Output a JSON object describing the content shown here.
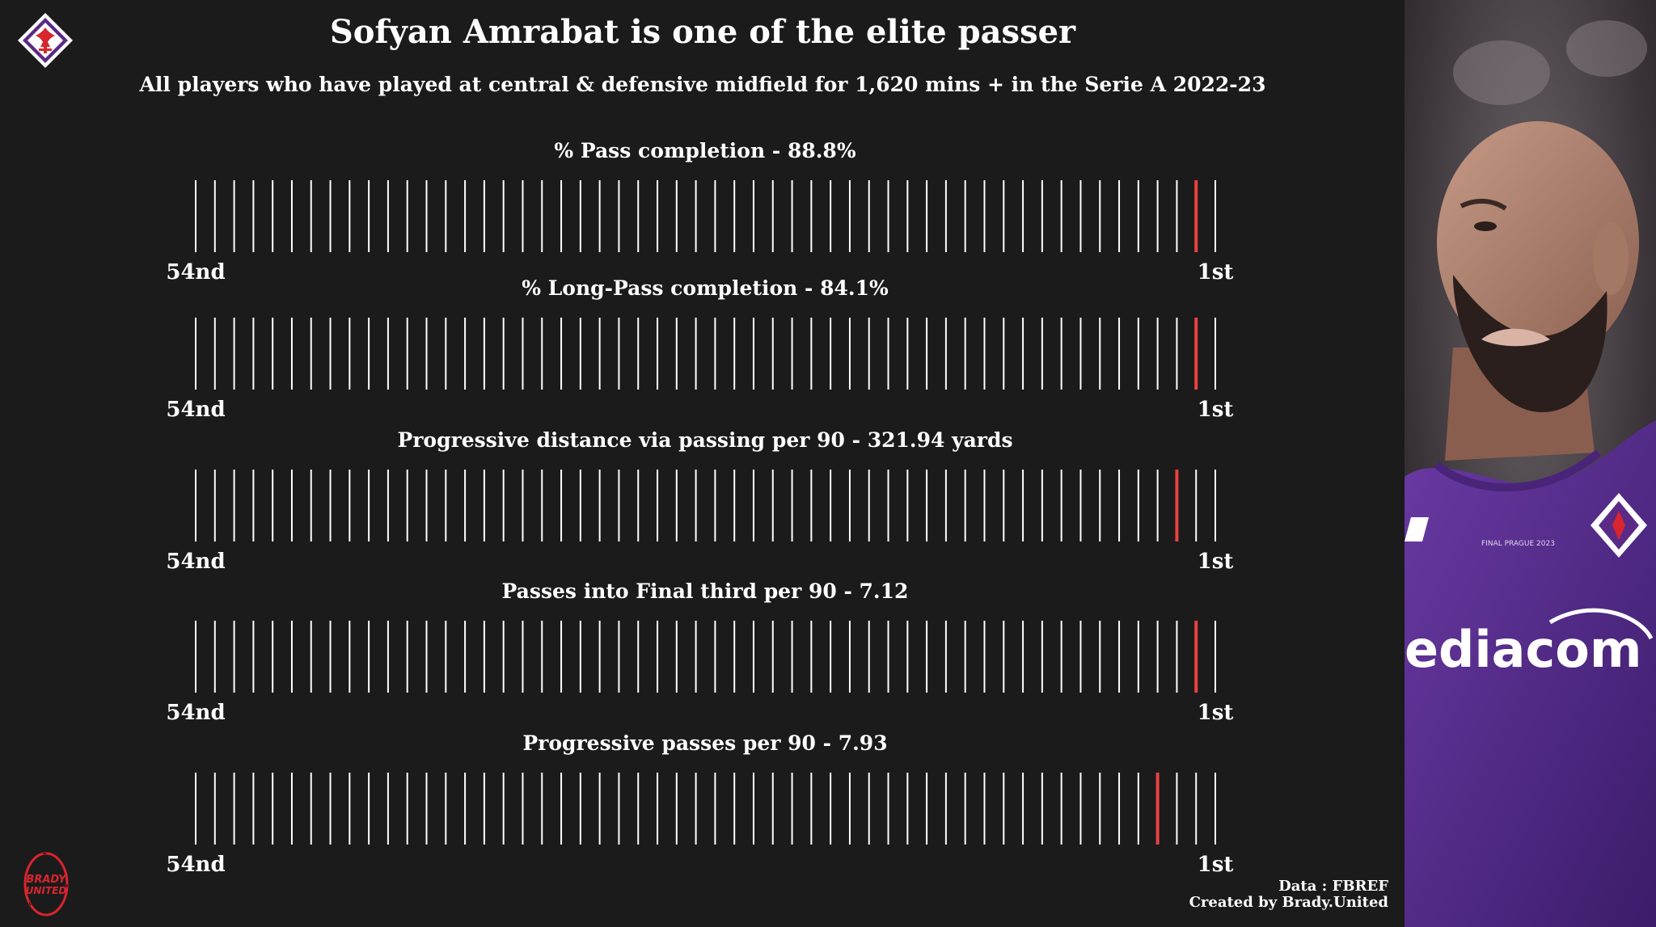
{
  "title": "Sofyan Amrabat is one of the elite passer",
  "subtitle": "All players who have played at central & defensive midfield for 1,620 mins + in the Serie A 2022-23",
  "footer": {
    "source": "Data : FBREF",
    "credit": "Created by Brady.United"
  },
  "colors": {
    "background": "#1b1b1b",
    "tick": "#ffffff",
    "highlight": "#e8423f",
    "fiorentina_purple": "#5b2a86"
  },
  "icons": {
    "club_logo": "fiorentina-crest-icon",
    "brand_logo": "brady-united-logo-icon"
  },
  "chart_data": [
    {
      "type": "strip",
      "title": "% Pass completion - 88.8%",
      "metric": "% Pass completion",
      "value": "88.8%",
      "players": 54,
      "highlight_rank": 2,
      "left_label": "54nd",
      "right_label": "1st"
    },
    {
      "type": "strip",
      "title": "% Long-Pass completion - 84.1%",
      "metric": "% Long-Pass completion",
      "value": "84.1%",
      "players": 54,
      "highlight_rank": 2,
      "left_label": "54nd",
      "right_label": "1st"
    },
    {
      "type": "strip",
      "title": "Progressive distance via passing per 90 - 321.94 yards",
      "metric": "Progressive distance via passing per 90",
      "value": "321.94 yards",
      "players": 54,
      "highlight_rank": 3,
      "left_label": "54nd",
      "right_label": "1st"
    },
    {
      "type": "strip",
      "title": "Passes into Final third per 90 - 7.12",
      "metric": "Passes into Final third per 90",
      "value": "7.12",
      "players": 54,
      "highlight_rank": 2,
      "left_label": "54nd",
      "right_label": "1st"
    },
    {
      "type": "strip",
      "title": "Progressive passes per 90 - 7.93",
      "metric": "Progressive passes per 90",
      "value": "7.93",
      "players": 54,
      "highlight_rank": 4,
      "left_label": "54nd",
      "right_label": "1st"
    }
  ]
}
